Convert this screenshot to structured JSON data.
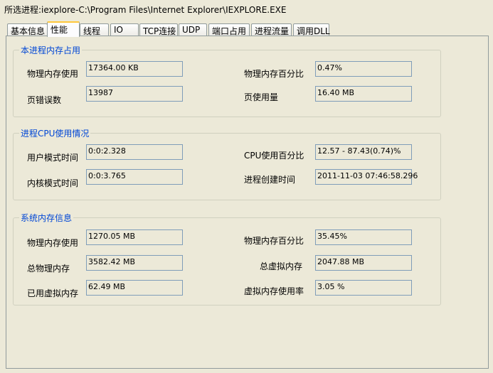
{
  "header": {
    "selected_process": "所选进程:iexplore-C:\\Program Files\\Internet Explorer\\IEXPLORE.EXE"
  },
  "tabs": [
    {
      "label": "基本信息"
    },
    {
      "label": "性能",
      "selected": true
    },
    {
      "label": "线程"
    },
    {
      "label": "IO"
    },
    {
      "label": "TCP连接"
    },
    {
      "label": "UDP"
    },
    {
      "label": "端口占用"
    },
    {
      "label": "进程流量"
    },
    {
      "label": "调用DLL"
    }
  ],
  "groups": [
    {
      "title": "本进程内存占用",
      "fields": [
        {
          "label": "物理内存使用",
          "value": "17364.00 KB"
        },
        {
          "label": "物理内存百分比",
          "value": "0.47%"
        },
        {
          "label": "页错误数",
          "value": "13987"
        },
        {
          "label": "页使用量",
          "value": "16.40 MB"
        }
      ]
    },
    {
      "title": "进程CPU使用情况",
      "fields": [
        {
          "label": "用户模式时间",
          "value": "0:0:2.328"
        },
        {
          "label": "CPU使用百分比",
          "value": "12.57 - 87.43(0.74)%"
        },
        {
          "label": "内核模式时间",
          "value": "0:0:3.765"
        },
        {
          "label": "进程创建时间",
          "value": "2011-11-03 07:46:58.296"
        }
      ]
    },
    {
      "title": "系统内存信息",
      "fields": [
        {
          "label": "物理内存使用",
          "value": "1270.05 MB"
        },
        {
          "label": "物理内存百分比",
          "value": "35.45%"
        },
        {
          "label": "总物理内存",
          "value": "3582.42 MB"
        },
        {
          "label": "总虚拟内存",
          "value": "2047.88 MB"
        },
        {
          "label": "已用虚拟内存",
          "value": "62.49 MB"
        },
        {
          "label": "虚拟内存使用率",
          "value": "3.05 %"
        }
      ]
    }
  ]
}
